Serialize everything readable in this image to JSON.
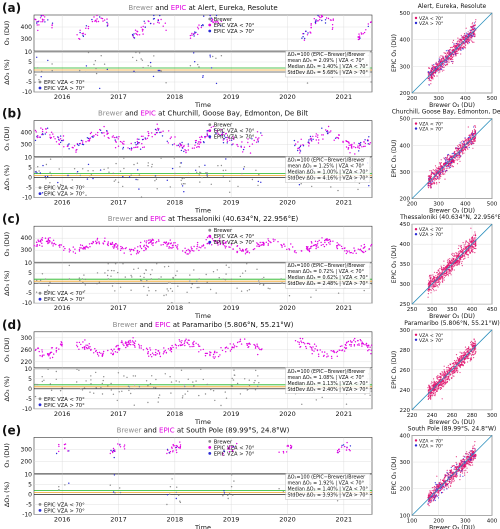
{
  "colors": {
    "brewer": "#8c8c8c",
    "epic_lo": "#e000e0",
    "epic_hi": "#2b2bd6",
    "scatter": "#e0116b",
    "oneone": "#2a8fbd",
    "green": "#1db31d",
    "orange": "#f0a020",
    "grid": "#d9d9d9",
    "text": "#111111"
  },
  "axis_labels": {
    "o3": "O₃ (DU)",
    "delta": "ΔO₃ (%)",
    "time": "Time",
    "epic_o3": "EPIC O₃ (DU)",
    "brewer_o3": "Brewer O₃ (DU)"
  },
  "legend_lines": {
    "vza_lo_short": "VZA < 70°",
    "vza_hi_short": "VZA > 70°"
  },
  "chart_data": [
    {
      "type": "scatter",
      "label": "(a)",
      "title_parts": [
        "Brewer",
        " and ",
        "EPIC",
        " at Alert, Eureka, Resolute"
      ],
      "years": [
        "2016",
        "2017",
        "2018",
        "2019",
        "2020",
        "2021"
      ],
      "time_range": [
        "2015-07",
        "2021-06"
      ],
      "ylim": [
        200,
        500
      ],
      "yticks": [
        300,
        400
      ],
      "dlim": [
        -10,
        10
      ],
      "dticks": [
        -10,
        -5,
        0,
        5,
        10
      ],
      "legend": [
        "Brewer",
        "EPIC VZA < 70°",
        "EPIC VZA > 70°"
      ],
      "bottom_legend": [
        "EPIC VZA < 70°",
        "EPIC VZA > 70°"
      ],
      "stats": [
        "ΔO₃=100 (EPIC−Brewer)/Brewer",
        "mean ΔO₃ = 2.09% | VZA < 70°",
        "Median ΔO₃ = 1.40% | VZA < 70°",
        "StdDev ΔO₃ = 5.68% | VZA > 70°"
      ],
      "scatter": {
        "title": "Alert, Eureka, Resolute",
        "xlim": [
          200,
          500
        ],
        "ylim": [
          200,
          500
        ],
        "ticks": [
          200,
          300,
          400,
          500
        ]
      }
    },
    {
      "type": "scatter",
      "label": "(b)",
      "title_parts": [
        "Brewer",
        " and ",
        "EPIC",
        " at Churchill, Goose Bay, Edmonton, De Bilt"
      ],
      "years": [
        "2016",
        "2017",
        "2018",
        "2019",
        "2020",
        "2021"
      ],
      "time_range": [
        "2015-07",
        "2021-06"
      ],
      "ylim": [
        200,
        500
      ],
      "yticks": [
        300,
        400
      ],
      "dlim": [
        -10,
        10
      ],
      "dticks": [
        -10,
        -5,
        0,
        5,
        10
      ],
      "legend": [
        "Brewer",
        "EPIC VZA < 70°",
        "EPIC VZA > 70°"
      ],
      "bottom_legend": [
        "EPIC VZA < 70°",
        "EPIC VZA > 70°"
      ],
      "stats": [
        "ΔO₃=100 (EPIC−Brewer)/Brewer",
        "mean ΔO₃ = 1.25% | VZA < 70°",
        "Median ΔO₃ = 1.00% | VZA < 70°",
        "StdDev ΔO₃ = 4.16% | VZA > 70°"
      ],
      "scatter": {
        "title": "Churchill, Goose Bay, Edmonton, De Bilt",
        "xlim": [
          200,
          500
        ],
        "ylim": [
          200,
          500
        ],
        "ticks": [
          200,
          300,
          400,
          500
        ]
      }
    },
    {
      "type": "scatter",
      "label": "(c)",
      "title_parts": [
        "Brewer",
        " and ",
        "EPIC",
        " at Thessaloniki (40.634°N, 22.956°E)"
      ],
      "years": [
        "2016",
        "2017",
        "2018",
        "2019",
        "2020",
        "2021"
      ],
      "time_range": [
        "2015-07",
        "2021-06"
      ],
      "ylim": [
        200,
        500
      ],
      "yticks": [
        300,
        400
      ],
      "dlim": [
        -10,
        10
      ],
      "dticks": [
        -10,
        -5,
        0,
        5,
        10
      ],
      "legend": [
        "Brewer",
        "EPIC VZA < 70°",
        "EPIC VZA > 70°"
      ],
      "bottom_legend": [
        "EPIC VZA < 70°",
        "EPIC VZA > 70°"
      ],
      "stats": [
        "ΔO₃=100 (EPIC−Brewer)/Brewer",
        "mean ΔO₃ = 0.72% | VZA < 70°",
        "Median ΔO₃ = 0.62% | VZA < 70°",
        "StdDev ΔO₃ = 2.48% | VZA > 70°"
      ],
      "scatter": {
        "title": "Thessaloniki (40.634°N, 22.956°E)",
        "xlim": [
          250,
          450
        ],
        "ylim": [
          250,
          450
        ],
        "ticks": [
          250,
          300,
          350,
          400,
          450
        ]
      }
    },
    {
      "type": "scatter",
      "label": "(d)",
      "title_parts": [
        "Brewer",
        " and ",
        "EPIC",
        " at Paramaribo (5.806°N, 55.21°W)"
      ],
      "years": [
        "2016",
        "2017",
        "2018",
        "2019",
        "2020",
        "2021"
      ],
      "time_range": [
        "2015-07",
        "2021-06"
      ],
      "ylim": [
        200,
        320
      ],
      "yticks": [
        220,
        260,
        300
      ],
      "dlim": [
        -10,
        10
      ],
      "dticks": [
        -10,
        -5,
        0,
        5,
        10
      ],
      "legend": [],
      "bottom_legend": [
        "EPIC VZA < 70°",
        "EPIC VZA > 70°"
      ],
      "stats": [
        "ΔO₃=100 (EPIC−Brewer)/Brewer",
        "mean ΔO₃ = 1.08% | VZA < 70°",
        "Median ΔO₃ = 1.13% | VZA < 70°",
        "StdDev ΔO₃ = 2.40% | VZA > 70°"
      ],
      "scatter": {
        "title": "Paramaribo (5.806°N, 55.21°W)",
        "xlim": [
          220,
          300
        ],
        "ylim": [
          220,
          300
        ],
        "ticks": [
          220,
          240,
          260,
          280,
          300
        ]
      }
    },
    {
      "type": "scatter",
      "label": "(e)",
      "title_parts": [
        "Brewer",
        " and ",
        "EPIC",
        " at South Pole (89.99°S, 24.8°W)"
      ],
      "years": [
        "2016",
        "2017",
        "2018",
        "2019",
        "2020",
        "2021"
      ],
      "time_range": [
        "2015-07",
        "2021-06"
      ],
      "ylim": [
        100,
        400
      ],
      "yticks": [
        200,
        300
      ],
      "dlim": [
        -10,
        10
      ],
      "dticks": [
        -10,
        -5,
        0,
        5,
        10
      ],
      "legend": [
        "Brewer",
        "EPIC VZA < 70°",
        "EPIC VZA > 70°"
      ],
      "bottom_legend": [
        "EPIC VZA < 70°",
        "EPIC VZA > 70°"
      ],
      "stats": [
        "ΔO₃=100 (EPIC−Brewer)/Brewer",
        "mean ΔO₃ = 1.92% | VZA < 70°",
        "Median ΔO₃ = 1.40% | VZA < 70°",
        "StdDev ΔO₃ = 3.93% | VZA > 70°"
      ],
      "scatter": {
        "title": "South Pole (89.99°S, 24.8°W)",
        "xlim": [
          100,
          400
        ],
        "ylim": [
          100,
          400
        ],
        "ticks": [
          100,
          200,
          300,
          400
        ]
      }
    }
  ]
}
